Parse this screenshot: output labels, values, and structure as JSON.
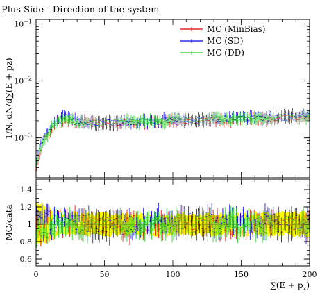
{
  "title": "Plus Side - Direction of the system",
  "chart_data": [
    {
      "type": "line",
      "panel": "main",
      "ylabel": "1/N, dN/d∑(E + p_z)",
      "yscale": "log",
      "ylim": [
        0.0002,
        0.12
      ],
      "xlim": [
        0,
        200
      ],
      "x": [
        0,
        2,
        4,
        6,
        8,
        10,
        12,
        15,
        20,
        25,
        30,
        40,
        50,
        60,
        70,
        80,
        90,
        100,
        110,
        120,
        130,
        140,
        150,
        160,
        170,
        180,
        190,
        200
      ],
      "yticks": [
        {
          "value": 0.001,
          "label": "10^{-3}"
        },
        {
          "value": 0.01,
          "label": "10^{-2}"
        },
        {
          "value": 0.1,
          "label": "10^{-1}"
        }
      ],
      "series": [
        {
          "name": "MC (MinBias)",
          "color": "#dd0000",
          "values": [
            0.0003,
            0.0005,
            0.0007,
            0.0009,
            0.0011,
            0.0013,
            0.0015,
            0.0018,
            0.0021,
            0.002,
            0.0019,
            0.0018,
            0.0018,
            0.0018,
            0.0019,
            0.0019,
            0.0019,
            0.002,
            0.002,
            0.0021,
            0.0021,
            0.0021,
            0.0022,
            0.0022,
            0.0022,
            0.0023,
            0.0023,
            0.0023
          ]
        },
        {
          "name": "MC (SD)",
          "color": "#0000ee",
          "values": [
            0.0004,
            0.0006,
            0.0008,
            0.001,
            0.0012,
            0.0014,
            0.0016,
            0.0019,
            0.0023,
            0.0022,
            0.002,
            0.0019,
            0.0019,
            0.0019,
            0.002,
            0.002,
            0.002,
            0.0021,
            0.0021,
            0.0021,
            0.0022,
            0.0022,
            0.0022,
            0.0023,
            0.0023,
            0.0023,
            0.0024,
            0.0024
          ]
        },
        {
          "name": "MC (DD)",
          "color": "#22cc22",
          "values": [
            0.00035,
            0.00055,
            0.00075,
            0.00095,
            0.00115,
            0.00135,
            0.00155,
            0.00185,
            0.0022,
            0.0021,
            0.00195,
            0.00185,
            0.00185,
            0.00185,
            0.00195,
            0.00195,
            0.00195,
            0.00205,
            0.00205,
            0.0021,
            0.00215,
            0.00215,
            0.0022,
            0.00225,
            0.00225,
            0.0023,
            0.00235,
            0.00235
          ]
        }
      ]
    },
    {
      "type": "line",
      "panel": "ratio",
      "ylabel": "MC/data",
      "xlabel": "∑(E + p_z)",
      "ylim": [
        0.52,
        1.52
      ],
      "xlim": [
        0,
        200
      ],
      "xticks": [
        0,
        50,
        100,
        150,
        200
      ],
      "yticks": [
        0.6,
        0.8,
        1.0,
        1.2,
        1.4
      ],
      "ytick_labels": [
        "0.6",
        "0.8",
        "1",
        "1.2",
        "1.4"
      ],
      "band": {
        "color": "#ffff00",
        "x": [
          0,
          10,
          20,
          50,
          100,
          150,
          200
        ],
        "lower": [
          0.75,
          0.83,
          0.87,
          0.88,
          0.89,
          0.88,
          0.87
        ],
        "upper": [
          1.25,
          1.17,
          1.13,
          1.12,
          1.11,
          1.12,
          1.13
        ]
      },
      "series": [
        {
          "name": "MC (MinBias)",
          "color": "#dd0000",
          "x": [
            0,
            20,
            50,
            100,
            150,
            200
          ],
          "values": [
            0.95,
            1.0,
            0.98,
            1.0,
            0.99,
            1.0
          ]
        },
        {
          "name": "MC (SD)",
          "color": "#0000ee",
          "x": [
            0,
            20,
            50,
            100,
            150,
            200
          ],
          "values": [
            1.05,
            1.02,
            1.0,
            1.02,
            1.01,
            1.0
          ]
        },
        {
          "name": "MC (DD)",
          "color": "#22cc22",
          "x": [
            0,
            20,
            50,
            100,
            150,
            200
          ],
          "values": [
            0.98,
            1.0,
            0.99,
            1.0,
            1.0,
            1.0
          ]
        }
      ]
    }
  ],
  "legend_placement": "top-right",
  "ratio_reference": 1.0
}
